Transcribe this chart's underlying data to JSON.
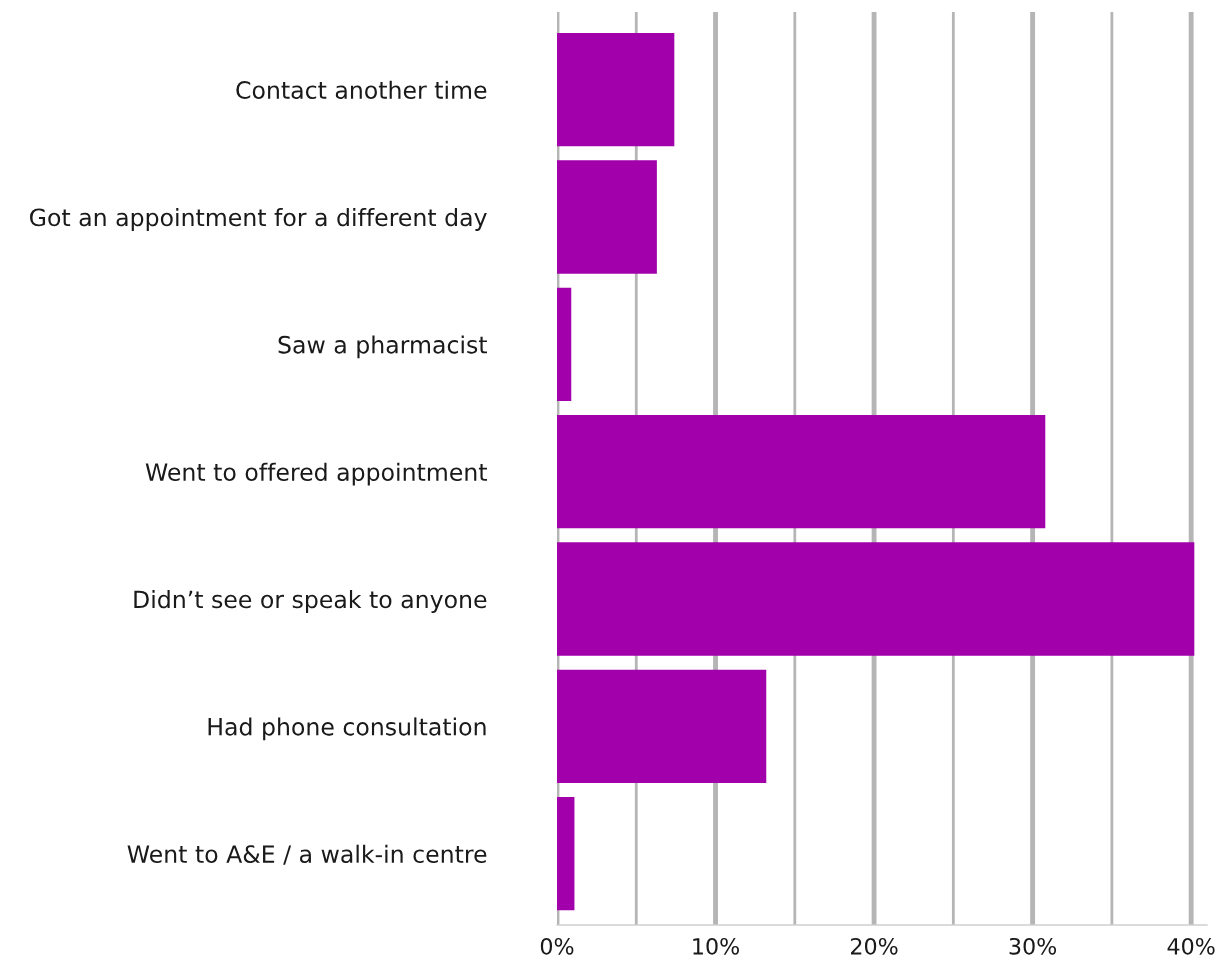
{
  "chart_data": {
    "type": "bar",
    "orientation": "horizontal",
    "categories": [
      "Contact another time",
      "Got an appointment for a different day",
      "Saw a pharmacist",
      "Went to offered appointment",
      "Didn’t see or speak to anyone",
      "Had phone consultation",
      "Went to A&E / a walk-in centre"
    ],
    "values": [
      7.4,
      6.3,
      0.9,
      30.8,
      40.2,
      13.2,
      1.1
    ],
    "color": "#a100aa",
    "xlim": [
      0,
      41
    ],
    "xticks": [
      {
        "value": 0,
        "label": "0%"
      },
      {
        "value": 5,
        "label": null
      },
      {
        "value": 10,
        "label": "10%"
      },
      {
        "value": 15,
        "label": null
      },
      {
        "value": 20,
        "label": "20%"
      },
      {
        "value": 25,
        "label": null
      },
      {
        "value": 30,
        "label": "30%"
      },
      {
        "value": 35,
        "label": null
      },
      {
        "value": 40,
        "label": "40%"
      }
    ],
    "grid": "x"
  }
}
